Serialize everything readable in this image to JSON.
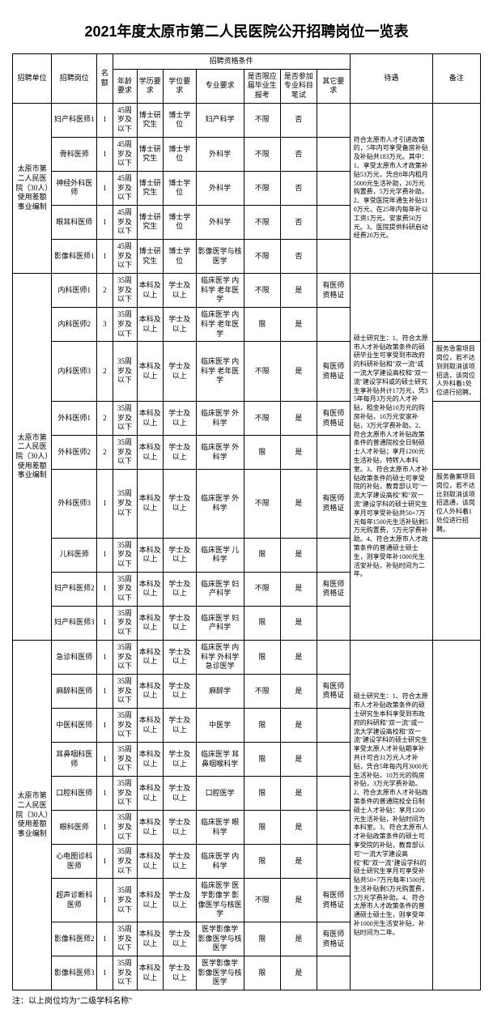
{
  "title": "2021年度太原市第二人民医院公开招聘岗位一览表",
  "footnote": "注：以上岗位均为\"二级学科名称\"",
  "headers": {
    "unit": "招聘单位",
    "post": "招聘岗位",
    "num": "名额",
    "cond": "招聘资格条件",
    "age": "年龄要求",
    "edu": "学历要求",
    "deg": "学位要求",
    "major": "专业要求",
    "fresh": "是否限应届毕业生报考",
    "exam": "是否参加专业科目笔试",
    "other": "其它要求",
    "treat": "待遇",
    "note": "备注"
  },
  "groups": [
    {
      "unit": "太原市第二人民医院（30人）使用差额事业编制",
      "treat": "符合太原市人才引进政策的，5年内可享受备房补贴及补贴共183万元。其中：1、享受太原市人才政策补贴53万元，凭合8年内租月5000元生活补助，20万元购置费，5万元学费补助。2、享受医院年通生补贴110万元，在25年内每年补以工资1万元。安家费50万元。3、医院提供科研启动经费20万元。",
      "note": "",
      "rows": [
        {
          "post": "妇产科医师1",
          "num": "1",
          "age": "45周岁及以下",
          "edu": "博士研究生",
          "deg": "博士学位",
          "major": "妇产科学",
          "fresh": "不限",
          "exam": "否",
          "other": ""
        },
        {
          "post": "骨科医师",
          "num": "1",
          "age": "45周岁及以下",
          "edu": "博士研究生",
          "deg": "博士学位",
          "major": "外科学",
          "fresh": "不限",
          "exam": "否",
          "other": ""
        },
        {
          "post": "神经外科医师",
          "num": "1",
          "age": "45周岁及以下",
          "edu": "博士研究生",
          "deg": "博士学位",
          "major": "外科学",
          "fresh": "不限",
          "exam": "否",
          "other": ""
        },
        {
          "post": "眼耳科医师",
          "num": "1",
          "age": "45周岁及以下",
          "edu": "博士研究生",
          "deg": "博士学位",
          "major": "外科学",
          "fresh": "不限",
          "exam": "否",
          "other": ""
        },
        {
          "post": "影像科医师1",
          "num": "1",
          "age": "45周岁及以下",
          "edu": "博士研究生",
          "deg": "博士学位",
          "major": "影像医学与核医学",
          "fresh": "不限",
          "exam": "否",
          "other": ""
        }
      ]
    },
    {
      "unit": "太原市第二人民医院（30人）使用差额事业编制",
      "treat": "硕士研究生：1、符合太原市人才补贴政策条件的硕研毕业生可享受到市政府的科研补贴和\"双一流\"或一流大学建设高校和\"双一流\"建设学科或的硕士研究生享补贴共计17万元，凭35年每月3万元的人才补贴，租金补贴10万元的购房补贴，10万元安家补贴，3万元学费补助。2、符合太原市人才补贴政策条件的普通院校全日制硕士人才补贴；享月1200元生活补贴，特转入本科室。3、符合太原市人才补贴政策条件的硕士可享受院的补贴，教育部认可\"一流大学建设高校\"和\"双一流\"建设学科的硕士研究生享月可享受补贴共50+7万元每年1500元生活补贴剩5万元购置费，5万元学费补助。4、符合太原市人才政策条件的普通硕士硕士生，则享受年补1000元生活安补贴，补贴时间为二年。",
      "note1": "服务急需项目岗位，若不达到则取消该项招选，该岗位人外科着1处位进行招聘。",
      "note2": "服务备案项目岗位，若不达比到取消该项招选通，该岗位人外科着1处位进行招聘。",
      "rows": [
        {
          "post": "内科医师1",
          "num": "2",
          "age": "35周岁及以下",
          "edu": "本科及以上",
          "deg": "学士及以上",
          "major": "临床医学 内科学 老年医学",
          "fresh": "不限",
          "exam": "是",
          "other": "有医师资格证",
          "noteRef": ""
        },
        {
          "post": "内科医师2",
          "num": "3",
          "age": "35周岁及以下",
          "edu": "本科及以上",
          "deg": "学士及以上",
          "major": "临床医学 内科学 老年医学",
          "fresh": "限",
          "exam": "是",
          "other": "",
          "noteRef": ""
        },
        {
          "post": "内科医师3",
          "num": "2",
          "age": "35周岁及以下",
          "edu": "本科及以上",
          "deg": "学士及以上",
          "major": "临床医学 内科学 老年医学",
          "fresh": "不限",
          "exam": "是",
          "other": "有医师资格证",
          "noteRef": "1"
        },
        {
          "post": "外科医师1",
          "num": "2",
          "age": "35周岁及以下",
          "edu": "本科及以上",
          "deg": "学士及以上",
          "major": "临床医学 外科学",
          "fresh": "不限",
          "exam": "是",
          "other": "有医师资格证",
          "noteRef": ""
        },
        {
          "post": "外科医师2",
          "num": "2",
          "age": "35周岁及以下",
          "edu": "本科及以上",
          "deg": "学士及以上",
          "major": "临床医学 外科学",
          "fresh": "限",
          "exam": "是",
          "other": "",
          "noteRef": ""
        },
        {
          "post": "外科医师3",
          "num": "1",
          "age": "35周岁及以下",
          "edu": "本科及以上",
          "deg": "学士及以上",
          "major": "临床医学 外科学",
          "fresh": "不限",
          "exam": "是",
          "other": "有医师资格证",
          "noteRef": "2"
        },
        {
          "post": "儿科医师",
          "num": "1",
          "age": "35周岁及以下",
          "edu": "本科及以上",
          "deg": "学士及以上",
          "major": "临床医学 儿科学",
          "fresh": "限",
          "exam": "是",
          "other": "",
          "noteRef": ""
        },
        {
          "post": "妇产科医师2",
          "num": "1",
          "age": "35周岁及以下",
          "edu": "本科及以上",
          "deg": "学士及以上",
          "major": "临床医学 妇产科学",
          "fresh": "不限",
          "exam": "是",
          "other": "有医师资格证",
          "noteRef": ""
        },
        {
          "post": "妇产科医师3",
          "num": "1",
          "age": "35周岁及以下",
          "edu": "本科及以上",
          "deg": "学士及以上",
          "major": "临床医学 妇产科学",
          "fresh": "限",
          "exam": "是",
          "other": "",
          "noteRef": ""
        }
      ]
    },
    {
      "unit": "太原市第二人民医院（30人）使用差额事业编制",
      "treat": "硕士研究生：1、符合太原市人才补贴政策条件的硕士研究生本科享受到市政府的科研和\"双一流\"或一流大学建设高校和\"双一流\"建设学科的硕士研究生享受太原人才补贴期享补共计可合31万元人才补贴，凭合5年每内月3000元生活补贴，10万元的购房补贴，3万元学费补助。2、符合太原市人才补贴政策条件的普通院校全日制硕士人才补贴：享月1200元生活补贴，补贴时间为本科室。3、符合太原市人才补贴政策条件的硕士可享受院的补贴，教育部认可\"一流大学建设高校\"和\"双一流\"建设学科的硕士研究生享月可享受补贴共50+7万元每年1500元生活补贴剩5万元购置费，5万元学费补助。4、符合太原市人才政策条件的普通硕士硕士生，则享受年补1000元生活安补贴，补贴时间为二年。",
      "note": "",
      "rows": [
        {
          "post": "急诊科医师",
          "num": "1",
          "age": "35周岁及以下",
          "edu": "本科及以上",
          "deg": "学士及以上",
          "major": "临床医学 内科学 外科学 急诊医学",
          "fresh": "限",
          "exam": "是",
          "other": ""
        },
        {
          "post": "麻醉科医师",
          "num": "1",
          "age": "35周岁及以下",
          "edu": "本科及以上",
          "deg": "学士及以上",
          "major": "麻醉学",
          "fresh": "不限",
          "exam": "是",
          "other": "有医师资格证"
        },
        {
          "post": "中医科医师",
          "num": "1",
          "age": "35周岁及以下",
          "edu": "本科及以上",
          "deg": "学士及以上",
          "major": "中医学",
          "fresh": "限",
          "exam": "是",
          "other": ""
        },
        {
          "post": "耳鼻咽科医师",
          "num": "1",
          "age": "35周岁及以下",
          "edu": "本科及以上",
          "deg": "学士及以上",
          "major": "临床医学 耳鼻咽喉科学",
          "fresh": "限",
          "exam": "是",
          "other": ""
        },
        {
          "post": "口腔科医师",
          "num": "1",
          "age": "35周岁及以下",
          "edu": "本科及以上",
          "deg": "学士及以上",
          "major": "口腔医学",
          "fresh": "限",
          "exam": "是",
          "other": ""
        },
        {
          "post": "眼科医师",
          "num": "1",
          "age": "35周岁及以下",
          "edu": "本科及以上",
          "deg": "学士及以上",
          "major": "临床医学 眼科学",
          "fresh": "限",
          "exam": "是",
          "other": ""
        },
        {
          "post": "心电图诊科医师",
          "num": "1",
          "age": "35周岁及以下",
          "edu": "本科及以上",
          "deg": "学士及以上",
          "major": "临床医学 内科学",
          "fresh": "限",
          "exam": "是",
          "other": ""
        },
        {
          "post": "超声诊断科医师",
          "num": "1",
          "age": "35周岁及以下",
          "edu": "本科及以上",
          "deg": "学士及以上",
          "major": "临床医学 医学影像学 影像医学与核医学",
          "fresh": "不限",
          "exam": "是",
          "other": "有医师资格证"
        },
        {
          "post": "影像科医师2",
          "num": "1",
          "age": "35周岁及以下",
          "edu": "本科及以上",
          "deg": "学士及以上",
          "major": "医学影像学 影像医学与核医学",
          "fresh": "限",
          "exam": "是",
          "other": "有医师资格证"
        },
        {
          "post": "影像科医师3",
          "num": "1",
          "age": "35周岁及以下",
          "edu": "本科及以上",
          "deg": "学士及以上",
          "major": "医学影像学 影像医学与核医学",
          "fresh": "限",
          "exam": "是",
          "other": ""
        }
      ]
    }
  ]
}
